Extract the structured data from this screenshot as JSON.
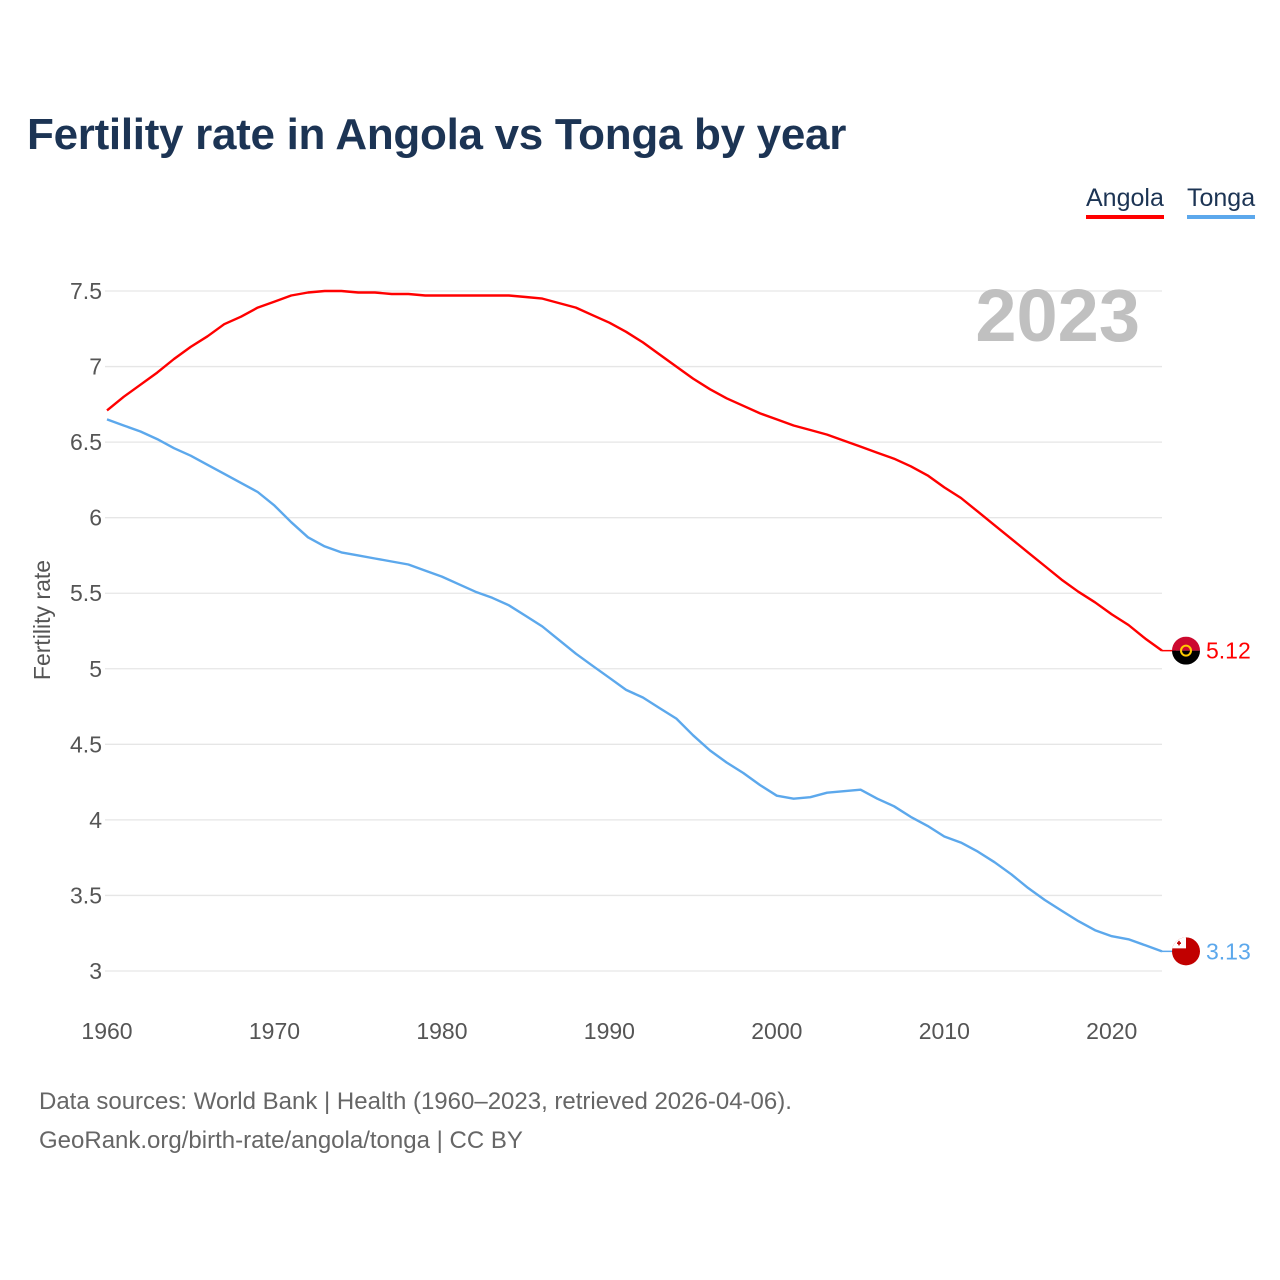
{
  "chart_data": {
    "type": "line",
    "title": "Fertility rate in Angola vs Tonga by year",
    "xlabel": "",
    "ylabel": "Fertility rate",
    "xlim": [
      1960,
      2023
    ],
    "ylim": [
      3,
      7.5
    ],
    "x_ticks": [
      "1960",
      "1970",
      "1980",
      "1990",
      "2000",
      "2010",
      "2020"
    ],
    "y_ticks": [
      "3",
      "3.5",
      "4",
      "4.5",
      "5",
      "5.5",
      "6",
      "6.5",
      "7",
      "7.5"
    ],
    "grid": true,
    "legend_position": "top-right",
    "year_label": "2023",
    "x": [
      1960,
      1961,
      1962,
      1963,
      1964,
      1965,
      1966,
      1967,
      1968,
      1969,
      1970,
      1971,
      1972,
      1973,
      1974,
      1975,
      1976,
      1977,
      1978,
      1979,
      1980,
      1981,
      1982,
      1983,
      1984,
      1985,
      1986,
      1987,
      1988,
      1989,
      1990,
      1991,
      1992,
      1993,
      1994,
      1995,
      1996,
      1997,
      1998,
      1999,
      2000,
      2001,
      2002,
      2003,
      2004,
      2005,
      2006,
      2007,
      2008,
      2009,
      2010,
      2011,
      2012,
      2013,
      2014,
      2015,
      2016,
      2017,
      2018,
      2019,
      2020,
      2021,
      2022,
      2023
    ],
    "series": [
      {
        "name": "Angola",
        "color": "#ff0000",
        "end_label": "5.12",
        "values": [
          6.71,
          6.8,
          6.88,
          6.96,
          7.05,
          7.13,
          7.2,
          7.28,
          7.33,
          7.39,
          7.43,
          7.47,
          7.49,
          7.5,
          7.5,
          7.49,
          7.49,
          7.48,
          7.48,
          7.47,
          7.47,
          7.47,
          7.47,
          7.47,
          7.47,
          7.46,
          7.45,
          7.42,
          7.39,
          7.34,
          7.29,
          7.23,
          7.16,
          7.08,
          7.0,
          6.92,
          6.85,
          6.79,
          6.74,
          6.69,
          6.65,
          6.61,
          6.58,
          6.55,
          6.51,
          6.47,
          6.43,
          6.39,
          6.34,
          6.28,
          6.2,
          6.13,
          6.04,
          5.95,
          5.86,
          5.77,
          5.68,
          5.59,
          5.51,
          5.44,
          5.36,
          5.29,
          5.2,
          5.12
        ]
      },
      {
        "name": "Tonga",
        "color": "#5ca8ec",
        "end_label": "3.13",
        "values": [
          6.65,
          6.61,
          6.57,
          6.52,
          6.46,
          6.41,
          6.35,
          6.29,
          6.23,
          6.17,
          6.08,
          5.97,
          5.87,
          5.81,
          5.77,
          5.75,
          5.73,
          5.71,
          5.69,
          5.65,
          5.61,
          5.56,
          5.51,
          5.47,
          5.42,
          5.35,
          5.28,
          5.19,
          5.1,
          5.02,
          4.94,
          4.86,
          4.81,
          4.74,
          4.67,
          4.56,
          4.46,
          4.38,
          4.31,
          4.23,
          4.16,
          4.14,
          4.15,
          4.18,
          4.19,
          4.2,
          4.14,
          4.09,
          4.02,
          3.96,
          3.89,
          3.85,
          3.79,
          3.72,
          3.64,
          3.55,
          3.47,
          3.4,
          3.33,
          3.27,
          3.23,
          3.21,
          3.17,
          3.13
        ]
      }
    ]
  },
  "footer": {
    "line1": "Data sources: World Bank | Health (1960–2023, retrieved 2026-04-06).",
    "line2": "GeoRank.org/birth-rate/angola/tonga | CC BY"
  }
}
